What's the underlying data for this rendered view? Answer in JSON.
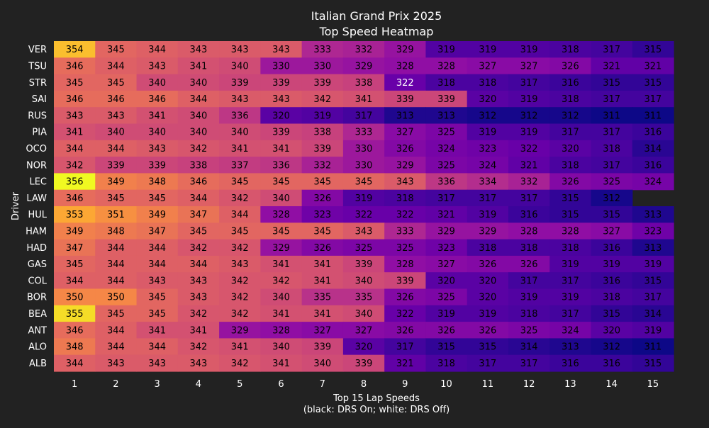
{
  "chart_data": {
    "type": "heatmap",
    "title": "Italian Grand Prix 2025",
    "subtitle": "Top Speed Heatmap",
    "xlabel": "Top 15 Lap Speeds",
    "xlabel_note": "(black: DRS On; white: DRS Off)",
    "ylabel": "Driver",
    "x": [
      "1",
      "2",
      "3",
      "4",
      "5",
      "6",
      "7",
      "8",
      "9",
      "10",
      "11",
      "12",
      "13",
      "14",
      "15"
    ],
    "drivers": [
      "VER",
      "TSU",
      "STR",
      "SAI",
      "RUS",
      "PIA",
      "OCO",
      "NOR",
      "LEC",
      "LAW",
      "HUL",
      "HAM",
      "HAD",
      "GAS",
      "COL",
      "BOR",
      "BEA",
      "ANT",
      "ALO",
      "ALB"
    ],
    "values": [
      [
        354,
        345,
        344,
        343,
        343,
        343,
        333,
        332,
        329,
        319,
        319,
        319,
        318,
        317,
        315
      ],
      [
        346,
        344,
        343,
        341,
        340,
        330,
        330,
        329,
        328,
        328,
        327,
        327,
        326,
        321,
        321
      ],
      [
        345,
        345,
        340,
        340,
        339,
        339,
        339,
        338,
        322,
        318,
        318,
        317,
        316,
        315,
        315
      ],
      [
        346,
        346,
        346,
        344,
        343,
        343,
        342,
        341,
        339,
        339,
        320,
        319,
        318,
        317,
        317
      ],
      [
        343,
        343,
        341,
        340,
        336,
        320,
        319,
        317,
        313,
        313,
        312,
        312,
        312,
        311,
        311
      ],
      [
        341,
        340,
        340,
        340,
        340,
        339,
        338,
        333,
        327,
        325,
        319,
        319,
        317,
        317,
        316
      ],
      [
        344,
        344,
        343,
        342,
        341,
        341,
        339,
        330,
        326,
        324,
        323,
        322,
        320,
        318,
        314
      ],
      [
        342,
        339,
        339,
        338,
        337,
        336,
        332,
        330,
        329,
        325,
        324,
        321,
        318,
        317,
        316
      ],
      [
        356,
        349,
        348,
        346,
        345,
        345,
        345,
        345,
        343,
        336,
        334,
        332,
        326,
        325,
        324
      ],
      [
        346,
        345,
        345,
        344,
        342,
        340,
        326,
        319,
        318,
        317,
        317,
        317,
        315,
        312,
        null
      ],
      [
        353,
        351,
        349,
        347,
        344,
        328,
        323,
        322,
        322,
        321,
        319,
        316,
        315,
        315,
        313
      ],
      [
        349,
        348,
        347,
        345,
        345,
        345,
        345,
        343,
        333,
        329,
        329,
        328,
        328,
        327,
        323
      ],
      [
        347,
        344,
        344,
        342,
        342,
        329,
        326,
        325,
        325,
        323,
        318,
        318,
        318,
        316,
        313
      ],
      [
        345,
        344,
        344,
        344,
        343,
        341,
        341,
        339,
        328,
        327,
        326,
        326,
        319,
        319,
        319
      ],
      [
        344,
        344,
        343,
        343,
        342,
        342,
        341,
        340,
        339,
        320,
        320,
        317,
        317,
        316,
        315
      ],
      [
        350,
        350,
        345,
        343,
        342,
        340,
        335,
        335,
        326,
        325,
        320,
        319,
        319,
        318,
        317
      ],
      [
        355,
        345,
        345,
        342,
        342,
        341,
        341,
        340,
        322,
        319,
        319,
        318,
        317,
        315,
        314
      ],
      [
        346,
        344,
        341,
        341,
        329,
        328,
        327,
        327,
        326,
        326,
        326,
        325,
        324,
        320,
        319
      ],
      [
        348,
        344,
        344,
        342,
        341,
        340,
        339,
        320,
        317,
        315,
        315,
        314,
        313,
        312,
        311
      ],
      [
        344,
        343,
        343,
        343,
        342,
        341,
        340,
        339,
        321,
        318,
        317,
        317,
        316,
        316,
        315
      ]
    ],
    "drs_off_cells": [
      [
        2,
        8
      ]
    ],
    "vmin": 311,
    "vmax": 356,
    "colormap": "plasma",
    "label_colors": {
      "drs_on": "#000000",
      "drs_off": "#ffffff"
    },
    "background": "#222222",
    "grid": false
  }
}
